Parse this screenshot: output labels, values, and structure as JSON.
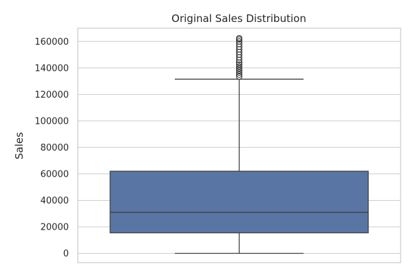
{
  "chart_data": {
    "type": "box",
    "title": "Original Sales Distribution",
    "xlabel": "",
    "ylabel": "Sales",
    "ylim": [
      -7000,
      170000
    ],
    "yticks": [
      0,
      20000,
      40000,
      60000,
      80000,
      100000,
      120000,
      140000,
      160000
    ],
    "grid": true,
    "box_color": "#5875a4",
    "line_color": "#3f3f3f",
    "grid_color": "#cccccc",
    "series": [
      {
        "min": 0,
        "q1": 15500,
        "median": 31000,
        "q3": 62000,
        "max": 131500,
        "outliers": [
          133500,
          135000,
          136500,
          138000,
          139500,
          141000,
          142500,
          144000,
          146000,
          148000,
          150000,
          152000,
          154000,
          156000,
          158000,
          160000,
          161500,
          162500
        ]
      }
    ]
  }
}
